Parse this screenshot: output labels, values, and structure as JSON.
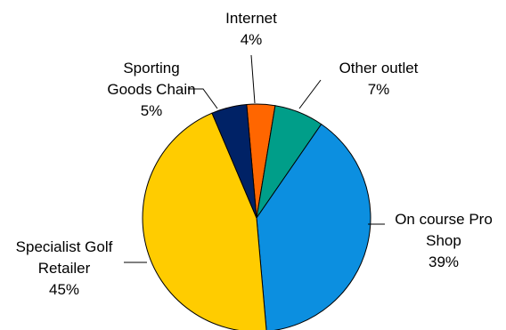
{
  "chart_data": {
    "type": "pie",
    "title": "",
    "legend": "none",
    "start_angle_deg": -5,
    "slices": [
      {
        "name": "Internet",
        "label_lines": [
          "Internet"
        ],
        "value": 4,
        "value_label": "4%",
        "color": "#FF6600"
      },
      {
        "name": "Other outlet",
        "label_lines": [
          "Other outlet"
        ],
        "value": 7,
        "value_label": "7%",
        "color": "#009E89"
      },
      {
        "name": "On course Pro Shop",
        "label_lines": [
          "On course Pro",
          "Shop"
        ],
        "value": 39,
        "value_label": "39%",
        "color": "#0C8FE0"
      },
      {
        "name": "Specialist Golf Retailer",
        "label_lines": [
          "Specialist Golf",
          "Retailer"
        ],
        "value": 45,
        "value_label": "45%",
        "color": "#FFCC00"
      },
      {
        "name": "Sporting Goods Chain",
        "label_lines": [
          "Sporting",
          "Goods Chain"
        ],
        "value": 5,
        "value_label": "5%",
        "color": "#002266"
      }
    ]
  }
}
